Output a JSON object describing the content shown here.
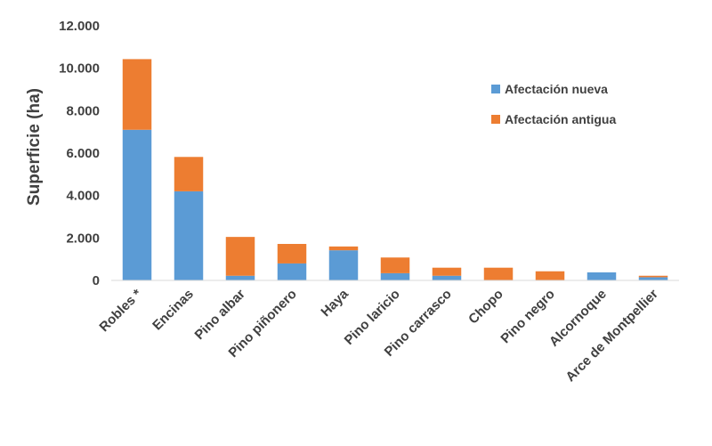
{
  "chart_data": {
    "type": "bar",
    "stacked": true,
    "title": "",
    "xlabel": "",
    "ylabel": "Superficie (ha)",
    "ylim": [
      0,
      12000
    ],
    "yticks": [
      "0",
      "2.000",
      "4.000",
      "6.000",
      "8.000",
      "10.000",
      "12.000"
    ],
    "categories": [
      "Robles *",
      "Encinas",
      "Pino albar",
      "Pino piñonero",
      "Haya",
      "Pino laricio",
      "Pino carrasco",
      "Chopo",
      "Pino negro",
      "Alcornoque",
      "Arce de Montpellier"
    ],
    "series": [
      {
        "name": "Afectación nueva",
        "color": "#5B9BD5",
        "values": [
          7100,
          4200,
          220,
          800,
          1420,
          340,
          220,
          0,
          0,
          380,
          150
        ]
      },
      {
        "name": "Afectación antigua",
        "color": "#ED7D31",
        "values": [
          3330,
          1620,
          1830,
          920,
          180,
          740,
          380,
          600,
          430,
          0,
          70
        ]
      }
    ],
    "grid": false,
    "legend": "top-right"
  }
}
